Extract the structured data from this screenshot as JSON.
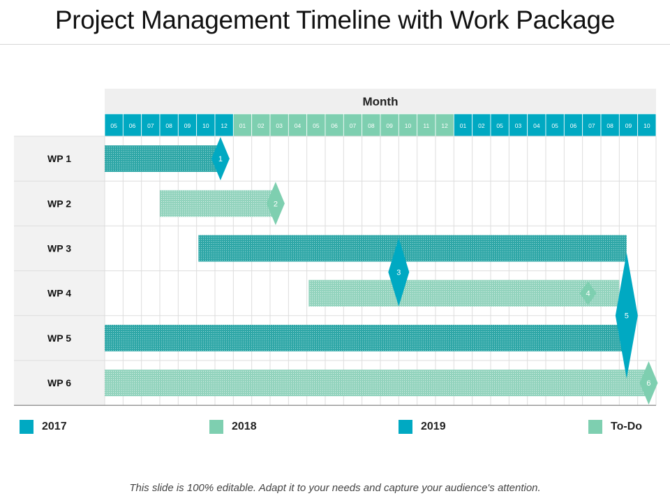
{
  "title": "Project Management Timeline with Work Package",
  "footer": "This slide is 100% editable. Adapt it to your needs and capture your audience's attention.",
  "colors": {
    "blue": "#00a9c2",
    "green": "#7ecfb0",
    "wp_dark": "#2fa7a7",
    "wp_light": "#92d3bd",
    "row_label_bg": "#f2f2f2",
    "header_bg": "#efefef",
    "grid": "#dddddd"
  },
  "chart_data": {
    "type": "gantt",
    "header_label": "Month",
    "months": [
      {
        "label": "05",
        "year": "2017"
      },
      {
        "label": "06",
        "year": "2017"
      },
      {
        "label": "07",
        "year": "2017"
      },
      {
        "label": "08",
        "year": "2017"
      },
      {
        "label": "09",
        "year": "2017"
      },
      {
        "label": "10",
        "year": "2017"
      },
      {
        "label": "12",
        "year": "2017"
      },
      {
        "label": "01",
        "year": "2018"
      },
      {
        "label": "02",
        "year": "2018"
      },
      {
        "label": "03",
        "year": "2018"
      },
      {
        "label": "04",
        "year": "2018"
      },
      {
        "label": "05",
        "year": "2018"
      },
      {
        "label": "06",
        "year": "2018"
      },
      {
        "label": "07",
        "year": "2018"
      },
      {
        "label": "08",
        "year": "2018"
      },
      {
        "label": "09",
        "year": "2018"
      },
      {
        "label": "10",
        "year": "2018"
      },
      {
        "label": "11",
        "year": "2018"
      },
      {
        "label": "12",
        "year": "2018"
      },
      {
        "label": "01",
        "year": "2019"
      },
      {
        "label": "02",
        "year": "2019"
      },
      {
        "label": "05",
        "year": "2019"
      },
      {
        "label": "03",
        "year": "2019"
      },
      {
        "label": "04",
        "year": "2019"
      },
      {
        "label": "05",
        "year": "2019"
      },
      {
        "label": "06",
        "year": "2019"
      },
      {
        "label": "07",
        "year": "2019"
      },
      {
        "label": "08",
        "year": "2019"
      },
      {
        "label": "09",
        "year": "2019"
      },
      {
        "label": "10",
        "year": "2019"
      }
    ],
    "work_packages": [
      {
        "name": "WP 1",
        "start": 0,
        "end": 6.3,
        "style": "dark"
      },
      {
        "name": "WP 2",
        "start": 3.0,
        "end": 9.2,
        "style": "light"
      },
      {
        "name": "WP 3",
        "start": 5.1,
        "end": 28.4,
        "style": "dark"
      },
      {
        "name": "WP 4",
        "start": 11.1,
        "end": 28.0,
        "style": "light"
      },
      {
        "name": "WP 5",
        "start": 0,
        "end": 28.4,
        "style": "dark"
      },
      {
        "name": "WP 6",
        "start": 0,
        "end": 29.6,
        "style": "light"
      }
    ],
    "milestones": [
      {
        "label": "1",
        "row": 0,
        "at": 6.3,
        "size": "small",
        "style": "blue"
      },
      {
        "label": "2",
        "row": 1,
        "at": 9.3,
        "size": "small",
        "style": "green"
      },
      {
        "label": "3",
        "row": 2,
        "at": 16.0,
        "size": "large",
        "style": "blue"
      },
      {
        "label": "4",
        "row": 3,
        "at": 26.3,
        "size": "tiny",
        "style": "green"
      },
      {
        "label": "5",
        "row": 3,
        "at": 28.4,
        "size": "xlarge",
        "style": "blue"
      },
      {
        "label": "6",
        "row": 5,
        "at": 29.6,
        "size": "small",
        "style": "green"
      }
    ],
    "legend": [
      {
        "label": "2017",
        "color": "#00a9c2"
      },
      {
        "label": "2018",
        "color": "#7ecfb0"
      },
      {
        "label": "2019",
        "color": "#00a9c2"
      },
      {
        "label": "To-Do",
        "color": "#7ecfb0"
      }
    ]
  }
}
